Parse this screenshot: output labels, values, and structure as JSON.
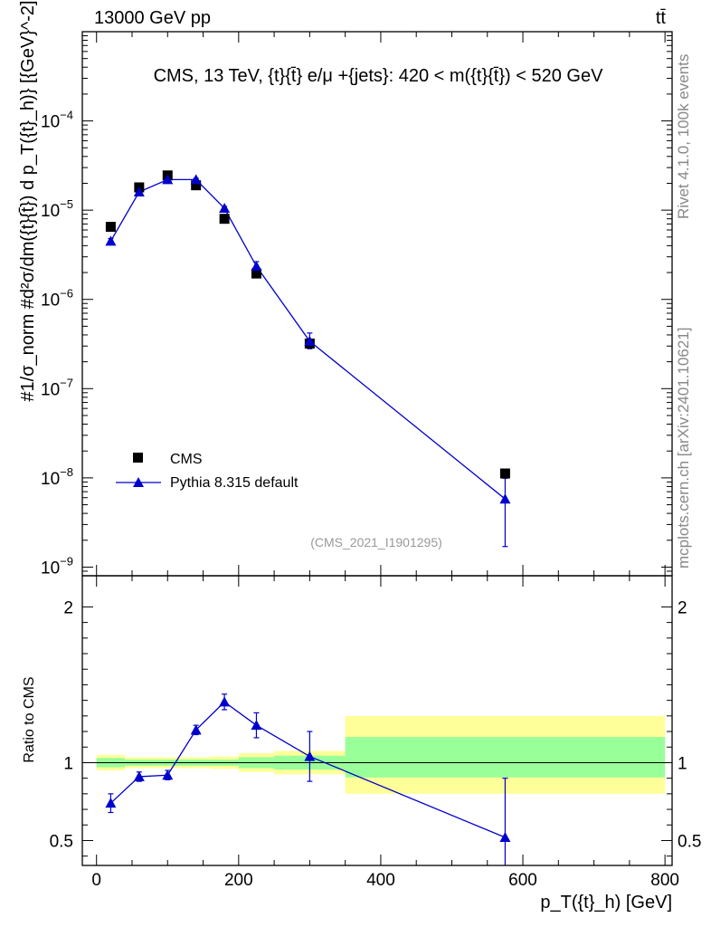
{
  "header": {
    "left": "13000 GeV pp",
    "right": "tt̄"
  },
  "side_labels": {
    "rivet": "Rivet 4.1.0,  100k events",
    "mcplots": "mcplots.cern.ch [arXiv:2401.10621]"
  },
  "colors": {
    "mc": "#0000cc",
    "data": "#000000",
    "band_outer": "#ffff99",
    "band_inner": "#99ff99",
    "side_text": "#888888"
  },
  "chart_data": [
    {
      "type": "scatter",
      "title": "CMS, 13 TeV, {t}{t̄} e/μ +{jets}: 420 < m({t}{t̄}) < 520 GeV",
      "ylabel": "#1/σ_norm #d²σ/dm({t}{t̄}) d p_T({t}_h)} [{GeV}^-2]",
      "yscale": "log",
      "xlim": [
        -20,
        810
      ],
      "ylim": [
        8e-10,
        0.001
      ],
      "yticks": [
        {
          "v": 1e-09,
          "base": "10",
          "exp": "−9"
        },
        {
          "v": 1e-08,
          "base": "10",
          "exp": "−8"
        },
        {
          "v": 1e-07,
          "base": "10",
          "exp": "−7"
        },
        {
          "v": 1e-06,
          "base": "10",
          "exp": "−6"
        },
        {
          "v": 1e-05,
          "base": "10",
          "exp": "−5"
        },
        {
          "v": 0.0001,
          "base": "10",
          "exp": "−4"
        }
      ],
      "watermark": "(CMS_2021_I1901295)",
      "legend": {
        "placement": "bottom-left",
        "entries": [
          {
            "label": "CMS",
            "marker": "square"
          },
          {
            "label": "Pythia 8.315 default",
            "marker": "triangle"
          }
        ]
      },
      "series": [
        {
          "name": "CMS",
          "x": [
            20,
            60,
            100,
            140,
            180,
            225,
            300,
            575
          ],
          "y": [
            6.5e-06,
            1.8e-05,
            2.45e-05,
            1.9e-05,
            8e-06,
            1.95e-06,
            3.2e-07,
            1.12e-08
          ],
          "yerr_lo": [
            0,
            0,
            0,
            0,
            0,
            0,
            0,
            0
          ],
          "yerr_hi": [
            0,
            0,
            0,
            0,
            0,
            0,
            0,
            0
          ]
        },
        {
          "name": "Pythia 8.315 default",
          "x": [
            20,
            60,
            100,
            140,
            180,
            225,
            300,
            575
          ],
          "y": [
            4.5e-06,
            1.6e-05,
            2.2e-05,
            2.2e-05,
            1.05e-05,
            2.35e-06,
            3.4e-07,
            5.8e-09
          ],
          "yerr_lo": [
            3e-07,
            8e-07,
            8e-07,
            8e-07,
            5e-07,
            3e-07,
            6e-08,
            4.1e-09
          ],
          "yerr_hi": [
            3e-07,
            8e-07,
            8e-07,
            8e-07,
            5e-07,
            3e-07,
            8e-08,
            4.1e-09
          ]
        }
      ]
    },
    {
      "type": "line",
      "ylabel": "Ratio to CMS",
      "xlabel": "p_T({t}_h) [GeV]",
      "xlim": [
        -20,
        810
      ],
      "ylim": [
        0.34,
        2.2
      ],
      "xticks": [
        0,
        200,
        400,
        600,
        800
      ],
      "xtick_labels": [
        "0",
        "200",
        "400",
        "600",
        "800"
      ],
      "yticks": [
        0.5,
        1,
        2
      ],
      "ytick_labels": [
        "0.5",
        "1",
        "2"
      ],
      "bins": [
        {
          "lo": 0,
          "hi": 40,
          "outer": [
            0.95,
            1.05
          ],
          "inner": [
            0.97,
            1.03
          ]
        },
        {
          "lo": 40,
          "hi": 80,
          "outer": [
            0.965,
            1.035
          ],
          "inner": [
            0.98,
            1.02
          ]
        },
        {
          "lo": 80,
          "hi": 120,
          "outer": [
            0.965,
            1.035
          ],
          "inner": [
            0.98,
            1.02
          ]
        },
        {
          "lo": 120,
          "hi": 160,
          "outer": [
            0.965,
            1.035
          ],
          "inner": [
            0.98,
            1.02
          ]
        },
        {
          "lo": 160,
          "hi": 200,
          "outer": [
            0.96,
            1.04
          ],
          "inner": [
            0.98,
            1.02
          ]
        },
        {
          "lo": 200,
          "hi": 250,
          "outer": [
            0.94,
            1.06
          ],
          "inner": [
            0.965,
            1.035
          ]
        },
        {
          "lo": 250,
          "hi": 350,
          "outer": [
            0.925,
            1.075
          ],
          "inner": [
            0.955,
            1.045
          ]
        },
        {
          "lo": 350,
          "hi": 800,
          "outer": [
            0.8,
            1.3
          ],
          "inner": [
            0.905,
            1.165
          ]
        }
      ],
      "series": [
        {
          "name": "Pythia 8.315 default",
          "x": [
            20,
            60,
            100,
            140,
            180,
            225,
            300,
            575
          ],
          "y": [
            0.74,
            0.91,
            0.92,
            1.21,
            1.39,
            1.24,
            1.04,
            0.52
          ],
          "yerr_lo": [
            0.06,
            0.03,
            0.03,
            0.03,
            0.05,
            0.08,
            0.16,
            0.38
          ],
          "yerr_hi": [
            0.06,
            0.03,
            0.03,
            0.03,
            0.05,
            0.08,
            0.16,
            0.38
          ]
        }
      ]
    }
  ]
}
